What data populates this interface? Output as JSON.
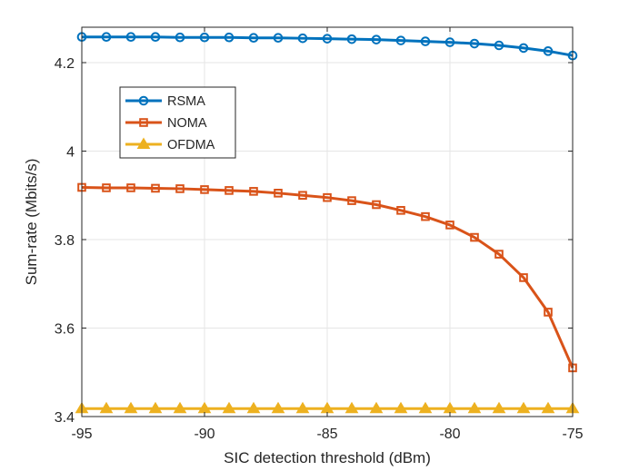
{
  "chart_data": {
    "type": "line",
    "title": "",
    "xlabel": "SIC detection threshold (dBm)",
    "ylabel": "Sum-rate (Mbits/s)",
    "xlim": [
      -95,
      -75
    ],
    "ylim": [
      3.4,
      4.28
    ],
    "xticks": [
      -95,
      -90,
      -85,
      -80,
      -75
    ],
    "yticks": [
      3.4,
      3.6,
      3.8,
      4,
      4.2
    ],
    "xtick_labels": [
      "-95",
      "-90",
      "-85",
      "-80",
      "-75"
    ],
    "ytick_labels": [
      "3.4",
      "3.6",
      "3.8",
      "4",
      "4.2"
    ],
    "grid": true,
    "legend_position": "top-left",
    "x": [
      -95,
      -94,
      -93,
      -92,
      -91,
      -90,
      -89,
      -88,
      -87,
      -86,
      -85,
      -84,
      -83,
      -82,
      -81,
      -80,
      -79,
      -78,
      -77,
      -76,
      -75
    ],
    "series": [
      {
        "name": "RSMA",
        "color": "#0072BD",
        "marker": "circle",
        "values": [
          4.258,
          4.258,
          4.258,
          4.258,
          4.257,
          4.257,
          4.257,
          4.256,
          4.256,
          4.255,
          4.254,
          4.253,
          4.252,
          4.25,
          4.248,
          4.246,
          4.243,
          4.239,
          4.233,
          4.226,
          4.216
        ]
      },
      {
        "name": "NOMA",
        "color": "#D95319",
        "marker": "square",
        "values": [
          3.918,
          3.917,
          3.917,
          3.916,
          3.915,
          3.913,
          3.911,
          3.909,
          3.905,
          3.9,
          3.895,
          3.888,
          3.879,
          3.866,
          3.852,
          3.833,
          3.805,
          3.767,
          3.714,
          3.636,
          3.51
        ]
      },
      {
        "name": "OFDMA",
        "color": "#EDB120",
        "marker": "triangle",
        "values": [
          3.418,
          3.418,
          3.418,
          3.418,
          3.418,
          3.418,
          3.418,
          3.418,
          3.418,
          3.418,
          3.418,
          3.418,
          3.418,
          3.418,
          3.418,
          3.418,
          3.418,
          3.418,
          3.418,
          3.418,
          3.418
        ]
      }
    ]
  }
}
